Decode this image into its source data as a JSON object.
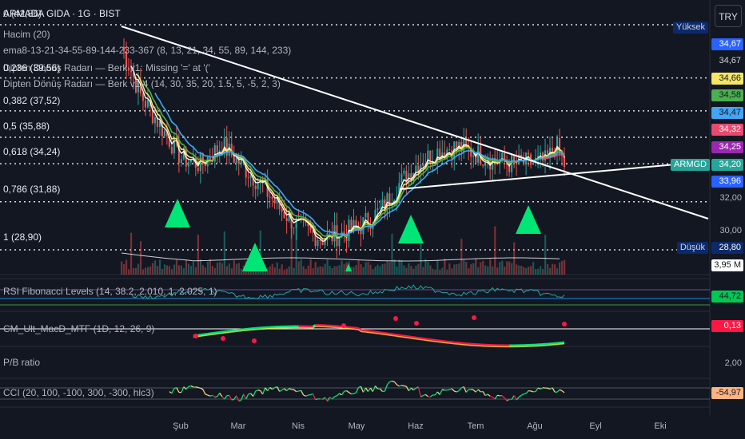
{
  "header": {
    "symbol_line": "ARMADA GIDA · 1G · BIST",
    "symbol_overlap_value": "0 (42,86)",
    "currency_button": "TRY"
  },
  "legend": {
    "volume": "Hacim (20)",
    "ema": "ema8-13-21-34-55-89-144-233-367 (8, 13, 21, 34, 55, 89, 144, 233)",
    "radar1": "Dipten Dönüş Radarı — Berk v1: Missing '=' at '('",
    "radar1_overlap": "0,236 (39,56)",
    "radar2": "Dipten Dönüş Radarı — Berk v1.4 (14, 30, 35, 20, 1.5, 5, -5, 2, 3)"
  },
  "fib_levels": [
    {
      "label": "0,382 (37,52)",
      "value": 37.52
    },
    {
      "label": "0,5 (35,88)",
      "value": 35.88
    },
    {
      "label": "0,618 (34,24)",
      "value": 34.24
    },
    {
      "label": "0,786 (31,88)",
      "value": 31.88
    },
    {
      "label": "1 (28,90)",
      "value": 28.9
    }
  ],
  "fib_top": {
    "label": "0 (42,86)",
    "value": 42.86
  },
  "fib_236": {
    "label": "0,236 (39,56)",
    "value": 39.56
  },
  "price_axis": {
    "high_label": "Yüksek",
    "low_label": "Düşük",
    "symbol_tag": "ARMGD",
    "tags": [
      {
        "text": "34,67",
        "bg": "#2962ff",
        "fg": "#ffffff"
      },
      {
        "text": "34,67",
        "bg": "#131722",
        "fg": "#d1d4dc"
      },
      {
        "text": "34,66",
        "bg": "#f5e663",
        "fg": "#131722"
      },
      {
        "text": "34,58",
        "bg": "#4caf50",
        "fg": "#131722"
      },
      {
        "text": "34,47",
        "bg": "#42a5f5",
        "fg": "#131722"
      },
      {
        "text": "34,32",
        "bg": "#e84a6e",
        "fg": "#ffffff"
      },
      {
        "text": "34,25",
        "bg": "#9c27b0",
        "fg": "#ffffff"
      },
      {
        "text": "34,20",
        "bg": "#26a69a",
        "fg": "#ffffff"
      },
      {
        "text": "33,96",
        "bg": "#2962ff",
        "fg": "#ffffff"
      }
    ],
    "plain": [
      "32,00",
      "30,00"
    ],
    "low_value": "28,80",
    "volume_value": "3,95 M"
  },
  "indicators": {
    "rsi": {
      "label": "RSI Fibonacci Levels (14, 38.2, 2.010, 1, 2.025, 1)",
      "value": "44,72"
    },
    "macd": {
      "label": "CM_Ult_MacD_MTF (1D, 12, 26, 9)",
      "value": "0,13"
    },
    "pb": {
      "label": "P/B ratio",
      "value": "2,00"
    },
    "cci": {
      "label": "CCI (20, 100, -100, 300, -300, hlc3)",
      "value": "-54,97"
    }
  },
  "x_axis": [
    "Şub",
    "Mar",
    "Nis",
    "May",
    "Haz",
    "Tem",
    "Ağu",
    "Eyl",
    "Eki"
  ],
  "chart_data": {
    "type": "line",
    "title": "ARMADA GIDA · 1G · BIST",
    "x": [
      "Şub",
      "Mar",
      "Nis",
      "May",
      "Haz",
      "Tem",
      "Ağu"
    ],
    "series": [
      {
        "name": "ARMGD",
        "values": [
          38.5,
          35.0,
          29.8,
          31.5,
          35.0,
          34.3,
          34.2
        ]
      }
    ],
    "ylim": [
      28.8,
      42.86
    ],
    "annotations": [
      "Yüksek",
      "Düşük",
      "ARMGD 34,20"
    ]
  },
  "colors": {
    "bg": "#131722",
    "up": "#26a69a",
    "down": "#ef5350",
    "trend": "#ffffff",
    "triangle": "#00e676"
  }
}
